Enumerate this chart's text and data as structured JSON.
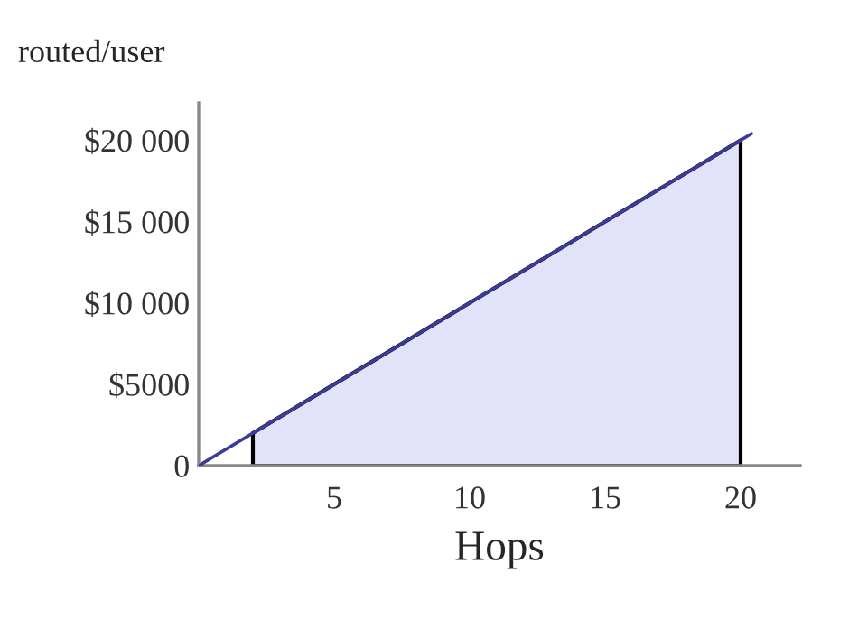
{
  "chart_data": {
    "type": "line",
    "ylabel": "routed/user",
    "xlabel": "Hops",
    "series": [
      {
        "color": "#3b3b9a",
        "x": [
          0,
          20.4
        ],
        "values": [
          0,
          20400
        ]
      },
      {
        "type": "area",
        "color": "#e2e2fb",
        "x": [
          2,
          20
        ],
        "values": [
          2000,
          20000
        ]
      }
    ],
    "xlim": [
      0,
      22.2
    ],
    "xticks": [
      5,
      10,
      15,
      20
    ],
    "ylim": [
      0,
      22300
    ],
    "yticks": [
      {
        "value": 0,
        "label": "0"
      },
      {
        "value": 5000,
        "label": "$5000"
      },
      {
        "value": 10000,
        "label": "$10 000"
      },
      {
        "value": 15000,
        "label": "$15 000"
      },
      {
        "value": 20000,
        "label": "$20 000"
      }
    ],
    "grid": false,
    "legend": false
  }
}
